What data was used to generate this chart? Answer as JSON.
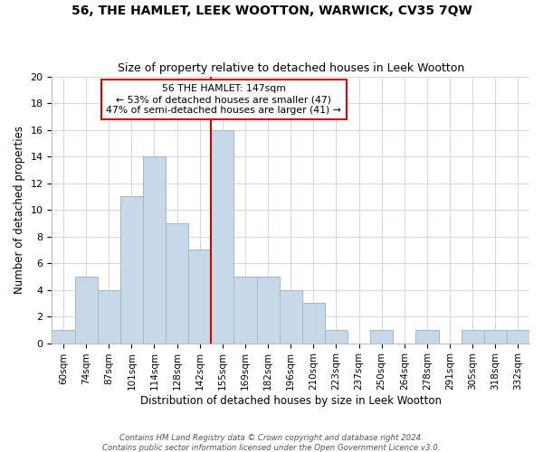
{
  "title": "56, THE HAMLET, LEEK WOOTTON, WARWICK, CV35 7QW",
  "subtitle": "Size of property relative to detached houses in Leek Wootton",
  "xlabel": "Distribution of detached houses by size in Leek Wootton",
  "ylabel": "Number of detached properties",
  "bar_labels": [
    "60sqm",
    "74sqm",
    "87sqm",
    "101sqm",
    "114sqm",
    "128sqm",
    "142sqm",
    "155sqm",
    "169sqm",
    "182sqm",
    "196sqm",
    "210sqm",
    "223sqm",
    "237sqm",
    "250sqm",
    "264sqm",
    "278sqm",
    "291sqm",
    "305sqm",
    "318sqm",
    "332sqm"
  ],
  "bar_values": [
    1,
    5,
    4,
    11,
    14,
    9,
    7,
    16,
    5,
    5,
    4,
    3,
    1,
    0,
    1,
    0,
    1,
    0,
    1,
    1,
    1
  ],
  "bar_color": "#c8d8e8",
  "bar_edgecolor": "#a0b8cc",
  "vline_pos": 6.5,
  "vline_color": "#cc0000",
  "annotation_lines": [
    "56 THE HAMLET: 147sqm",
    "← 53% of detached houses are smaller (47)",
    "47% of semi-detached houses are larger (41) →"
  ],
  "annotation_box_color": "#ffffff",
  "annotation_box_edgecolor": "#cc0000",
  "ylim": [
    0,
    20
  ],
  "yticks": [
    0,
    2,
    4,
    6,
    8,
    10,
    12,
    14,
    16,
    18,
    20
  ],
  "footer_line1": "Contains HM Land Registry data © Crown copyright and database right 2024.",
  "footer_line2": "Contains public sector information licensed under the Open Government Licence v3.0.",
  "background_color": "#ffffff",
  "grid_color": "#d0d8e0"
}
